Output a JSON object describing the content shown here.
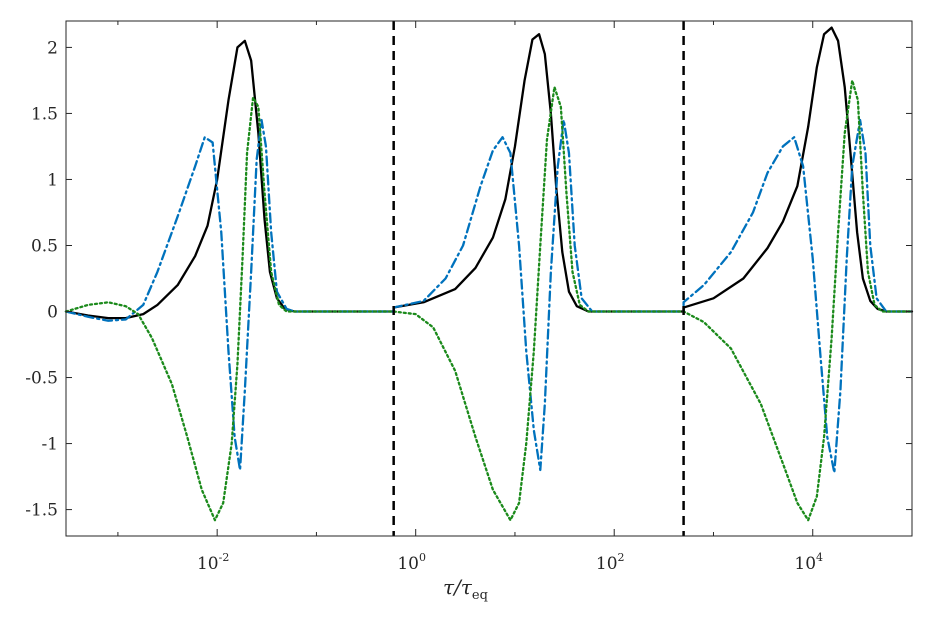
{
  "chart_data": {
    "type": "line",
    "title": "",
    "xlabel": {
      "main": "τ/τ",
      "subscript": "eq"
    },
    "ylabel": "",
    "x_scale": "log",
    "xlim": [
      0.0003,
      100000
    ],
    "ylim": [
      -1.7,
      2.2
    ],
    "grid": false,
    "legend": "none",
    "x_ticks": [
      {
        "value": 0.01,
        "base": "10",
        "exp": "-2"
      },
      {
        "value": 1,
        "base": "10",
        "exp": "0"
      },
      {
        "value": 100,
        "base": "10",
        "exp": "2"
      },
      {
        "value": 10000,
        "base": "10",
        "exp": "4"
      }
    ],
    "y_ticks": [
      {
        "value": 2,
        "label": "2"
      },
      {
        "value": 1.5,
        "label": "1.5"
      },
      {
        "value": 1,
        "label": "1"
      },
      {
        "value": 0.5,
        "label": "0.5"
      },
      {
        "value": 0,
        "label": "0"
      },
      {
        "value": -0.5,
        "label": "-0.5"
      },
      {
        "value": -1,
        "label": "-1"
      },
      {
        "value": -1.5,
        "label": "-1.5"
      }
    ],
    "vertical_lines": [
      {
        "x": 0.6,
        "color": "#000000",
        "style": "dashed"
      },
      {
        "x": 500,
        "color": "#000000",
        "style": "dashed"
      }
    ],
    "series": [
      {
        "color": "#000000",
        "style": "solid",
        "points": [
          [
            0.0003,
            0
          ],
          [
            0.0005,
            -0.03
          ],
          [
            0.0008,
            -0.05
          ],
          [
            0.0012,
            -0.05
          ],
          [
            0.0018,
            -0.02
          ],
          [
            0.0025,
            0.05
          ],
          [
            0.004,
            0.2
          ],
          [
            0.006,
            0.42
          ],
          [
            0.008,
            0.65
          ],
          [
            0.01,
            1.0
          ],
          [
            0.013,
            1.6
          ],
          [
            0.016,
            2.0
          ],
          [
            0.019,
            2.05
          ],
          [
            0.022,
            1.9
          ],
          [
            0.026,
            1.35
          ],
          [
            0.03,
            0.7
          ],
          [
            0.034,
            0.3
          ],
          [
            0.04,
            0.1
          ],
          [
            0.048,
            0.02
          ],
          [
            0.06,
            0
          ],
          [
            0.6,
            0
          ],
          [
            0.6,
            0.03
          ],
          [
            1.2,
            0.07
          ],
          [
            2.5,
            0.17
          ],
          [
            4,
            0.33
          ],
          [
            6,
            0.56
          ],
          [
            8,
            0.85
          ],
          [
            10,
            1.25
          ],
          [
            12.5,
            1.75
          ],
          [
            15,
            2.06
          ],
          [
            17.5,
            2.1
          ],
          [
            20,
            1.95
          ],
          [
            23,
            1.5
          ],
          [
            26,
            0.95
          ],
          [
            30,
            0.45
          ],
          [
            35,
            0.15
          ],
          [
            42,
            0.04
          ],
          [
            55,
            0
          ],
          [
            500,
            0
          ],
          [
            500,
            0.03
          ],
          [
            1000,
            0.1
          ],
          [
            2000,
            0.25
          ],
          [
            3500,
            0.48
          ],
          [
            5000,
            0.68
          ],
          [
            7000,
            0.95
          ],
          [
            9000,
            1.4
          ],
          [
            11000,
            1.85
          ],
          [
            13000,
            2.1
          ],
          [
            15500,
            2.15
          ],
          [
            18000,
            2.05
          ],
          [
            21000,
            1.7
          ],
          [
            24000,
            1.2
          ],
          [
            28000,
            0.6
          ],
          [
            32000,
            0.25
          ],
          [
            38000,
            0.08
          ],
          [
            45000,
            0.02
          ],
          [
            55000,
            0
          ],
          [
            100000,
            0
          ]
        ]
      },
      {
        "color": "#0072BD",
        "style": "dashdot",
        "points": [
          [
            0.0003,
            0
          ],
          [
            0.0005,
            -0.04
          ],
          [
            0.0008,
            -0.07
          ],
          [
            0.0012,
            -0.06
          ],
          [
            0.0018,
            0.05
          ],
          [
            0.0025,
            0.3
          ],
          [
            0.004,
            0.72
          ],
          [
            0.006,
            1.1
          ],
          [
            0.0075,
            1.32
          ],
          [
            0.009,
            1.28
          ],
          [
            0.011,
            0.6
          ],
          [
            0.013,
            -0.3
          ],
          [
            0.015,
            -0.95
          ],
          [
            0.017,
            -1.2
          ],
          [
            0.019,
            -0.6
          ],
          [
            0.022,
            0.3
          ],
          [
            0.025,
            1.15
          ],
          [
            0.028,
            1.45
          ],
          [
            0.031,
            1.25
          ],
          [
            0.035,
            0.6
          ],
          [
            0.04,
            0.15
          ],
          [
            0.05,
            0.02
          ],
          [
            0.06,
            0
          ],
          [
            0.6,
            0
          ],
          [
            0.6,
            0.03
          ],
          [
            1.2,
            0.08
          ],
          [
            2,
            0.25
          ],
          [
            3,
            0.5
          ],
          [
            4.5,
            0.95
          ],
          [
            6,
            1.22
          ],
          [
            7.5,
            1.32
          ],
          [
            9,
            1.2
          ],
          [
            11,
            0.5
          ],
          [
            13,
            -0.3
          ],
          [
            15.5,
            -0.9
          ],
          [
            18,
            -1.2
          ],
          [
            20,
            -0.7
          ],
          [
            23,
            0.3
          ],
          [
            27,
            1.1
          ],
          [
            31,
            1.45
          ],
          [
            35,
            1.2
          ],
          [
            40,
            0.5
          ],
          [
            47,
            0.1
          ],
          [
            60,
            0
          ],
          [
            500,
            0
          ],
          [
            500,
            0.07
          ],
          [
            800,
            0.2
          ],
          [
            1500,
            0.45
          ],
          [
            2500,
            0.75
          ],
          [
            3500,
            1.05
          ],
          [
            5000,
            1.25
          ],
          [
            6500,
            1.32
          ],
          [
            8000,
            1.1
          ],
          [
            10000,
            0.4
          ],
          [
            12000,
            -0.35
          ],
          [
            14000,
            -0.95
          ],
          [
            16500,
            -1.22
          ],
          [
            19000,
            -0.6
          ],
          [
            22000,
            0.4
          ],
          [
            25000,
            1.1
          ],
          [
            30000,
            1.45
          ],
          [
            34000,
            1.2
          ],
          [
            38000,
            0.5
          ],
          [
            44000,
            0.1
          ],
          [
            55000,
            0
          ],
          [
            100000,
            0
          ]
        ]
      },
      {
        "color": "#1B8A1B",
        "style": "dotted",
        "points": [
          [
            0.0003,
            0
          ],
          [
            0.0005,
            0.05
          ],
          [
            0.0008,
            0.07
          ],
          [
            0.0012,
            0.04
          ],
          [
            0.0016,
            -0.02
          ],
          [
            0.0022,
            -0.2
          ],
          [
            0.0035,
            -0.55
          ],
          [
            0.005,
            -0.95
          ],
          [
            0.007,
            -1.35
          ],
          [
            0.0095,
            -1.58
          ],
          [
            0.0115,
            -1.45
          ],
          [
            0.014,
            -1.0
          ],
          [
            0.016,
            -0.4
          ],
          [
            0.018,
            0.4
          ],
          [
            0.02,
            1.2
          ],
          [
            0.023,
            1.62
          ],
          [
            0.026,
            1.55
          ],
          [
            0.03,
            0.9
          ],
          [
            0.035,
            0.3
          ],
          [
            0.042,
            0.05
          ],
          [
            0.05,
            0
          ],
          [
            0.6,
            0
          ],
          [
            0.6,
            0
          ],
          [
            1,
            -0.02
          ],
          [
            1.5,
            -0.12
          ],
          [
            2.5,
            -0.45
          ],
          [
            4,
            -0.95
          ],
          [
            6,
            -1.35
          ],
          [
            9,
            -1.58
          ],
          [
            11,
            -1.45
          ],
          [
            13,
            -1.0
          ],
          [
            15.5,
            -0.3
          ],
          [
            18,
            0.5
          ],
          [
            21,
            1.3
          ],
          [
            25,
            1.7
          ],
          [
            29,
            1.55
          ],
          [
            33,
            0.9
          ],
          [
            38,
            0.3
          ],
          [
            45,
            0.05
          ],
          [
            55,
            0
          ],
          [
            500,
            0
          ],
          [
            500,
            0
          ],
          [
            800,
            -0.08
          ],
          [
            1500,
            -0.28
          ],
          [
            3000,
            -0.7
          ],
          [
            5000,
            -1.15
          ],
          [
            7000,
            -1.45
          ],
          [
            9000,
            -1.58
          ],
          [
            11000,
            -1.4
          ],
          [
            13000,
            -0.95
          ],
          [
            15500,
            -0.2
          ],
          [
            18000,
            0.6
          ],
          [
            21000,
            1.35
          ],
          [
            25000,
            1.75
          ],
          [
            28500,
            1.6
          ],
          [
            32000,
            0.9
          ],
          [
            36000,
            0.3
          ],
          [
            42000,
            0.05
          ],
          [
            50000,
            0
          ],
          [
            100000,
            0
          ]
        ]
      }
    ]
  }
}
